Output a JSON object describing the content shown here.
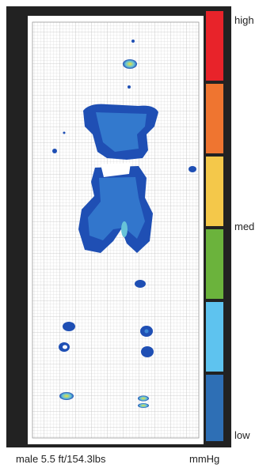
{
  "legend": {
    "high_label": "high",
    "med_label": "med",
    "low_label": "low",
    "unit_label": "mmHg",
    "levels": [
      {
        "color": "#e8232a"
      },
      {
        "color": "#ef7530"
      },
      {
        "color": "#f4c84a"
      },
      {
        "color": "#6bb33c"
      },
      {
        "color": "#5ec3ef"
      },
      {
        "color": "#2e6fb5"
      }
    ]
  },
  "caption": "male 5.5 ft/154.3lbs",
  "colors": {
    "frame": "#222222",
    "pressure_dark": "#1f4fb4",
    "pressure_mid": "#3b87d6",
    "pressure_light": "#67c3d8",
    "pressure_hot": "#e9e13a"
  }
}
